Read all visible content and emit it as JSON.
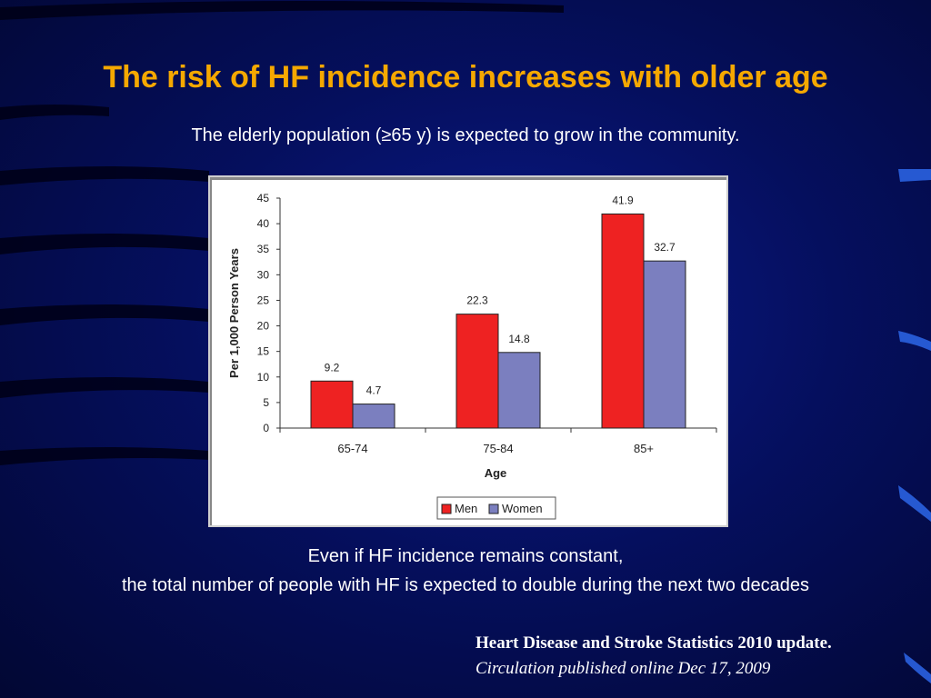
{
  "slide": {
    "title": "The risk of HF incidence increases with older age",
    "subtitle": "The elderly population (≥65 y) is expected to grow in the community.",
    "note_line1": "Even if HF incidence remains constant,",
    "note_line2": "the total number of people with HF is expected to double during the next two decades",
    "reference_title": "Heart Disease and Stroke Statistics 2010 update.",
    "reference_source": "Circulation published online Dec 17, 2009"
  },
  "colors": {
    "title": "#f5a800",
    "men": "#ee2222",
    "women": "#7b7fbf"
  },
  "chart_data": {
    "type": "bar",
    "categories": [
      "65-74",
      "75-84",
      "85+"
    ],
    "series": [
      {
        "name": "Men",
        "values": [
          9.2,
          22.3,
          41.9
        ],
        "color": "#ee2222"
      },
      {
        "name": "Women",
        "values": [
          4.7,
          14.8,
          32.7
        ],
        "color": "#7b7fbf"
      }
    ],
    "data_labels": [
      [
        "9.2",
        "22.3",
        "41.9"
      ],
      [
        "4.7",
        "14.8",
        "32.7"
      ]
    ],
    "xlabel": "Age",
    "ylabel": "Per 1,000 Person Years",
    "ylim": [
      0,
      45
    ],
    "yticks": [
      0,
      5,
      10,
      15,
      20,
      25,
      30,
      35,
      40,
      45
    ],
    "grid": false,
    "legend": "bottom-center"
  }
}
